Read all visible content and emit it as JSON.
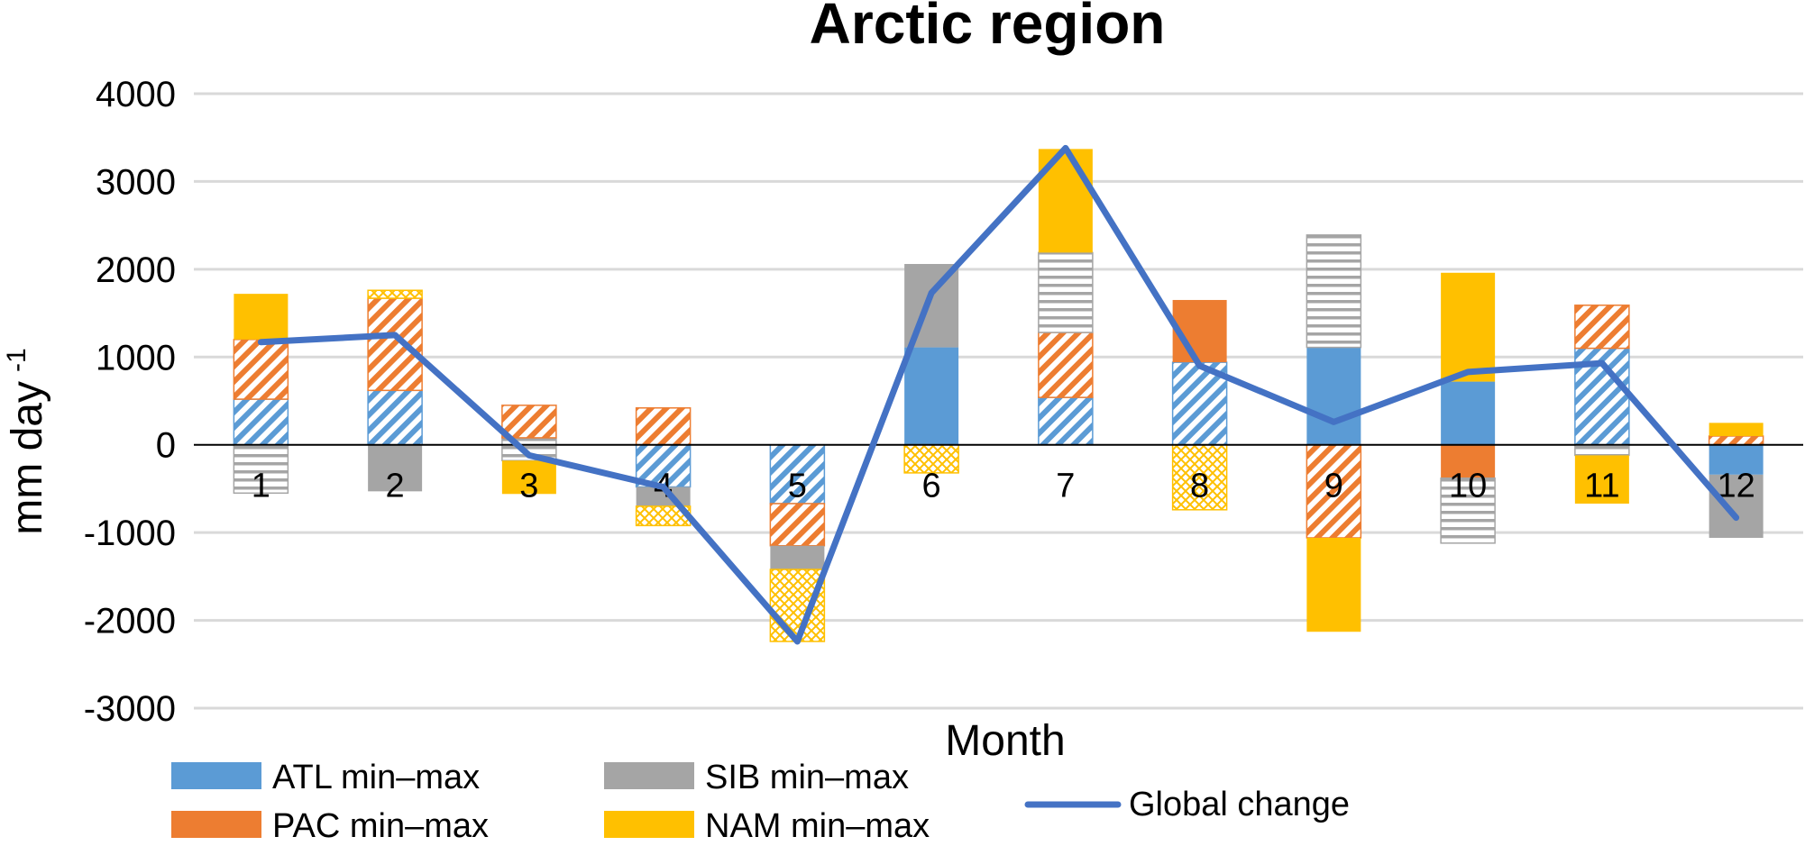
{
  "chart_data": {
    "type": "bar",
    "title": "Arctic region",
    "xlabel": "Month",
    "ylabel": "mm day",
    "ylabel_sup": "-1",
    "ylim": [
      -3000,
      4000
    ],
    "yticks": [
      4000,
      3000,
      2000,
      1000,
      0,
      -1000,
      -2000,
      -3000
    ],
    "grid": true,
    "categories": [
      "1",
      "2",
      "3",
      "4",
      "5",
      "6",
      "7",
      "8",
      "9",
      "10",
      "11",
      "12"
    ],
    "colors": {
      "ATL": "#5b9bd5",
      "PAC": "#ed7d31",
      "SIB": "#a5a5a5",
      "NAM": "#ffc000",
      "global": "#4472c4"
    },
    "segments": [
      {
        "month": "1",
        "series": "ATL",
        "from": 0,
        "to": 520,
        "style": "hatch"
      },
      {
        "month": "1",
        "series": "PAC",
        "from": 520,
        "to": 1200,
        "style": "hatch"
      },
      {
        "month": "1",
        "series": "NAM",
        "from": 1200,
        "to": 1720,
        "style": "solid"
      },
      {
        "month": "1",
        "series": "SIB",
        "from": 0,
        "to": -550,
        "style": "lines"
      },
      {
        "month": "2",
        "series": "ATL",
        "from": 0,
        "to": 620,
        "style": "hatch"
      },
      {
        "month": "2",
        "series": "PAC",
        "from": 620,
        "to": 1670,
        "style": "hatch"
      },
      {
        "month": "2",
        "series": "NAM",
        "from": 1670,
        "to": 1760,
        "style": "cross"
      },
      {
        "month": "2",
        "series": "SIB",
        "from": 0,
        "to": -530,
        "style": "solid"
      },
      {
        "month": "3",
        "series": "SIB",
        "from": 0,
        "to": 80,
        "style": "lines"
      },
      {
        "month": "3",
        "series": "PAC",
        "from": 80,
        "to": 450,
        "style": "hatch"
      },
      {
        "month": "3",
        "series": "SIB",
        "from": 0,
        "to": -180,
        "style": "lines"
      },
      {
        "month": "3",
        "series": "NAM",
        "from": -180,
        "to": -560,
        "style": "solid"
      },
      {
        "month": "4",
        "series": "PAC",
        "from": 0,
        "to": 420,
        "style": "hatch"
      },
      {
        "month": "4",
        "series": "ATL",
        "from": 0,
        "to": -480,
        "style": "hatch"
      },
      {
        "month": "4",
        "series": "SIB",
        "from": -480,
        "to": -700,
        "style": "solid"
      },
      {
        "month": "4",
        "series": "NAM",
        "from": -700,
        "to": -920,
        "style": "cross"
      },
      {
        "month": "5",
        "series": "ATL",
        "from": 0,
        "to": -670,
        "style": "hatch"
      },
      {
        "month": "5",
        "series": "PAC",
        "from": -670,
        "to": -1150,
        "style": "hatch"
      },
      {
        "month": "5",
        "series": "SIB",
        "from": -1150,
        "to": -1420,
        "style": "solid"
      },
      {
        "month": "5",
        "series": "NAM",
        "from": -1420,
        "to": -2240,
        "style": "cross"
      },
      {
        "month": "6",
        "series": "ATL",
        "from": 0,
        "to": 1110,
        "style": "solid"
      },
      {
        "month": "6",
        "series": "SIB",
        "from": 1110,
        "to": 2060,
        "style": "solid"
      },
      {
        "month": "6",
        "series": "NAM",
        "from": 0,
        "to": -320,
        "style": "cross"
      },
      {
        "month": "7",
        "series": "ATL",
        "from": 0,
        "to": 540,
        "style": "hatch"
      },
      {
        "month": "7",
        "series": "PAC",
        "from": 540,
        "to": 1280,
        "style": "hatch"
      },
      {
        "month": "7",
        "series": "SIB",
        "from": 1280,
        "to": 2190,
        "style": "lines"
      },
      {
        "month": "7",
        "series": "NAM",
        "from": 2190,
        "to": 3370,
        "style": "solid"
      },
      {
        "month": "8",
        "series": "ATL",
        "from": 0,
        "to": 940,
        "style": "hatch"
      },
      {
        "month": "8",
        "series": "PAC",
        "from": 940,
        "to": 1650,
        "style": "solid"
      },
      {
        "month": "8",
        "series": "NAM",
        "from": 0,
        "to": -740,
        "style": "cross"
      },
      {
        "month": "9",
        "series": "ATL",
        "from": 0,
        "to": 1110,
        "style": "solid"
      },
      {
        "month": "9",
        "series": "SIB",
        "from": 1110,
        "to": 2390,
        "style": "lines"
      },
      {
        "month": "9",
        "series": "PAC",
        "from": 0,
        "to": -1060,
        "style": "hatch"
      },
      {
        "month": "9",
        "series": "NAM",
        "from": -1060,
        "to": -2130,
        "style": "solid"
      },
      {
        "month": "10",
        "series": "ATL",
        "from": 0,
        "to": 720,
        "style": "solid"
      },
      {
        "month": "10",
        "series": "NAM",
        "from": 720,
        "to": 1960,
        "style": "solid"
      },
      {
        "month": "10",
        "series": "PAC",
        "from": 0,
        "to": -380,
        "style": "solid"
      },
      {
        "month": "10",
        "series": "SIB",
        "from": -380,
        "to": -1120,
        "style": "lines"
      },
      {
        "month": "11",
        "series": "ATL",
        "from": 0,
        "to": 1100,
        "style": "hatch"
      },
      {
        "month": "11",
        "series": "PAC",
        "from": 1100,
        "to": 1590,
        "style": "hatch"
      },
      {
        "month": "11",
        "series": "SIB",
        "from": 0,
        "to": -120,
        "style": "lines"
      },
      {
        "month": "11",
        "series": "NAM",
        "from": -120,
        "to": -670,
        "style": "solid"
      },
      {
        "month": "12",
        "series": "PAC",
        "from": 0,
        "to": 100,
        "style": "hatch"
      },
      {
        "month": "12",
        "series": "NAM",
        "from": 100,
        "to": 250,
        "style": "solid"
      },
      {
        "month": "12",
        "series": "ATL",
        "from": 0,
        "to": -340,
        "style": "solid"
      },
      {
        "month": "12",
        "series": "SIB",
        "from": -340,
        "to": -1060,
        "style": "solid"
      }
    ],
    "line": {
      "name": "Global change",
      "values": [
        1170,
        1250,
        -120,
        -480,
        -2240,
        1730,
        3380,
        900,
        260,
        830,
        930,
        -830
      ]
    },
    "legend": [
      {
        "label": "ATL min–max",
        "series": "ATL",
        "kind": "box"
      },
      {
        "label": "PAC min–max",
        "series": "PAC",
        "kind": "box"
      },
      {
        "label": "SIB min–max",
        "series": "SIB",
        "kind": "box"
      },
      {
        "label": "NAM min–max",
        "series": "NAM",
        "kind": "box"
      },
      {
        "label": "Global change",
        "series": "global",
        "kind": "line"
      }
    ]
  }
}
